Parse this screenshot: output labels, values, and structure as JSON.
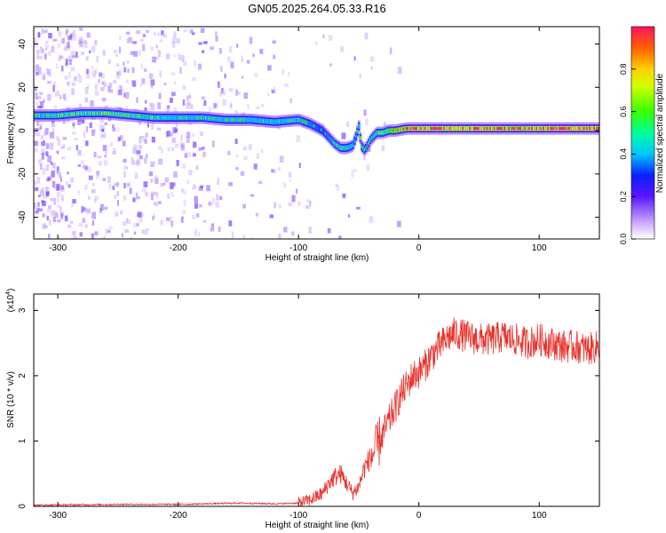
{
  "title": "GN05.2025.264.05.33.R16",
  "colors": {
    "snr_line": "#e8322c",
    "track_core": "#ff2a2a",
    "track_mid": "#2fe82f",
    "track_edge": "#6a1cff",
    "noise": "#b78cff"
  },
  "chart_data": [
    {
      "type": "heatmap",
      "xlabel": "Height of straight line (km)",
      "ylabel": "Frequency (Hz)",
      "xlim": [
        -320,
        150
      ],
      "ylim": [
        -50,
        48
      ],
      "xticks": [
        -300,
        -200,
        -100,
        0,
        100
      ],
      "yticks": [
        -40,
        -20,
        0,
        20,
        40
      ],
      "colorbar": {
        "label": "Normalized spectral amplitude",
        "range": [
          0,
          1
        ],
        "ticks": [
          "0.0",
          "0.2",
          "0.4",
          "0.6",
          "0.8"
        ]
      },
      "frequency_track": {
        "x": [
          -320,
          -300,
          -280,
          -260,
          -240,
          -220,
          -200,
          -180,
          -160,
          -140,
          -120,
          -100,
          -90,
          -80,
          -75,
          -70,
          -65,
          -60,
          -55,
          -52,
          -50,
          -48,
          -45,
          -40,
          -35,
          -30,
          -25,
          -20,
          -10,
          0,
          20,
          40,
          60,
          80,
          100,
          120,
          150
        ],
        "y": [
          7,
          7,
          8,
          8,
          7,
          6,
          6,
          6,
          5,
          5,
          4,
          5,
          3,
          0,
          -3,
          -6,
          -8,
          -8,
          -7,
          -2,
          2,
          -7,
          -9,
          -4,
          -1,
          -1,
          0,
          0,
          1,
          1,
          1,
          1,
          1,
          1,
          1,
          1,
          1
        ],
        "amplitude": [
          0.5,
          0.55,
          0.55,
          0.55,
          0.55,
          0.55,
          0.5,
          0.5,
          0.5,
          0.5,
          0.5,
          0.5,
          0.45,
          0.4,
          0.45,
          0.5,
          0.55,
          0.5,
          0.5,
          0.45,
          0.5,
          0.5,
          0.45,
          0.5,
          0.55,
          0.6,
          0.7,
          0.8,
          0.85,
          0.9,
          0.9,
          0.9,
          0.9,
          0.85,
          0.9,
          0.95,
          0.9
        ]
      }
    },
    {
      "type": "line",
      "xlabel": "Height of straight line (km)",
      "ylabel": "SNR (10 * v/v)",
      "y_multiplier": "(x10",
      "y_multiplier_exp": "4",
      "y_multiplier_close": ")",
      "xlim": [
        -320,
        150
      ],
      "ylim": [
        0,
        3.25
      ],
      "xticks": [
        -300,
        -200,
        -100,
        0,
        100
      ],
      "yticks": [
        0,
        1,
        2,
        3
      ],
      "series": [
        {
          "x": [
            -320,
            -250,
            -200,
            -150,
            -120,
            -100,
            -90,
            -80,
            -75,
            -70,
            -65,
            -60,
            -55,
            -50,
            -45,
            -40,
            -35,
            -30,
            -25,
            -20,
            -15,
            -10,
            -5,
            0,
            5,
            10,
            15,
            20,
            25,
            30,
            40,
            50,
            60,
            70,
            80,
            90,
            100,
            110,
            120,
            130,
            140,
            150
          ],
          "values": [
            0.02,
            0.03,
            0.03,
            0.05,
            0.04,
            0.05,
            0.1,
            0.2,
            0.35,
            0.45,
            0.5,
            0.35,
            0.2,
            0.3,
            0.6,
            0.75,
            0.9,
            1.1,
            1.3,
            1.5,
            1.7,
            1.85,
            2.0,
            2.05,
            2.15,
            2.3,
            2.4,
            2.5,
            2.6,
            2.65,
            2.6,
            2.55,
            2.55,
            2.6,
            2.55,
            2.5,
            2.55,
            2.5,
            2.45,
            2.45,
            2.4,
            2.45
          ]
        }
      ]
    }
  ]
}
